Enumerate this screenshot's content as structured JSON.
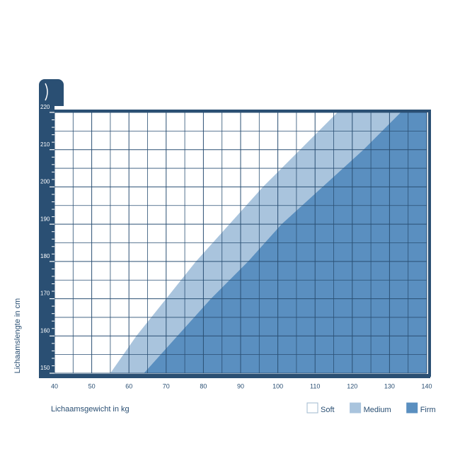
{
  "chart_data": {
    "type": "area",
    "x_label": "Lichaamsgewicht in kg",
    "y_label": "Lichaamslengte in cm",
    "xlim": [
      40,
      140
    ],
    "ylim": [
      150,
      220
    ],
    "xticks": [
      40,
      50,
      60,
      70,
      80,
      90,
      100,
      110,
      120,
      130,
      140
    ],
    "yticks": [
      150,
      160,
      170,
      180,
      190,
      200,
      210,
      220
    ],
    "y": [
      150,
      160,
      170,
      180,
      190,
      200,
      210,
      220
    ],
    "grid": true,
    "series": [
      {
        "name": "Soft",
        "color": "#ffffff"
      },
      {
        "name": "Medium",
        "color": "#a9c4dd",
        "values": [
          55,
          62,
          70,
          78,
          87,
          96,
          106,
          116
        ]
      },
      {
        "name": "Firm",
        "color": "#5a8fc0",
        "values": [
          64,
          73,
          82,
          92,
          101,
          112,
          123,
          133
        ]
      }
    ]
  }
}
